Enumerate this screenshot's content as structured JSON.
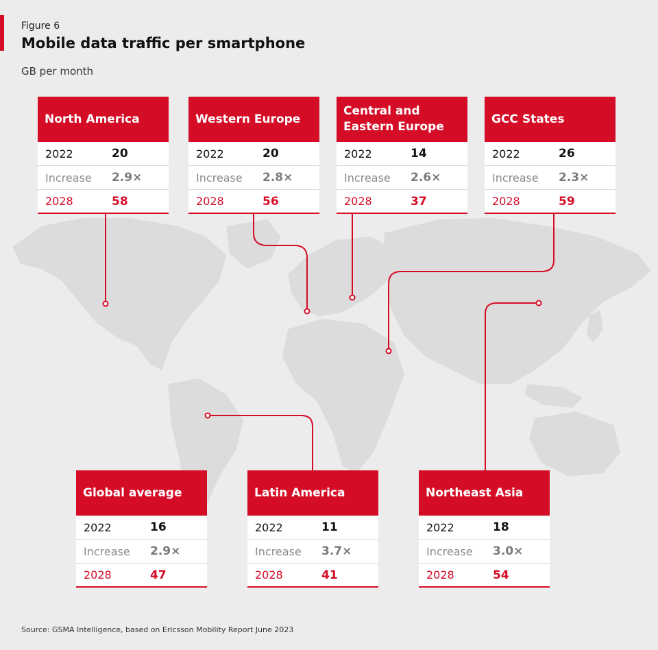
{
  "header": {
    "figure_label": "Figure 6",
    "title": "Mobile data traffic per smartphone",
    "unit": "GB per month"
  },
  "source": "Source: GSMA Intelligence, based on Ericsson Mobility Report June 2023",
  "colors": {
    "accent": "#d50c26",
    "map": "#dcdcdc",
    "background": "#ececec"
  },
  "chart_data": {
    "type": "table",
    "title": "Mobile data traffic per smartphone",
    "unit": "GB per month",
    "row_labels": [
      "2022",
      "Increase",
      "2028"
    ],
    "regions": [
      {
        "name": "North America",
        "y2022": "20",
        "increase": "2.9×",
        "y2028": "58"
      },
      {
        "name": "Western Europe",
        "y2022": "20",
        "increase": "2.8×",
        "y2028": "56"
      },
      {
        "name": "Central and Eastern Europe",
        "y2022": "14",
        "increase": "2.6×",
        "y2028": "37"
      },
      {
        "name": "GCC States",
        "y2022": "26",
        "increase": "2.3×",
        "y2028": "59"
      },
      {
        "name": "Global average",
        "y2022": "16",
        "increase": "2.9×",
        "y2028": "47"
      },
      {
        "name": "Latin America",
        "y2022": "11",
        "increase": "3.7×",
        "y2028": "41"
      },
      {
        "name": "Northeast Asia",
        "y2022": "18",
        "increase": "3.0×",
        "y2028": "54"
      }
    ]
  }
}
